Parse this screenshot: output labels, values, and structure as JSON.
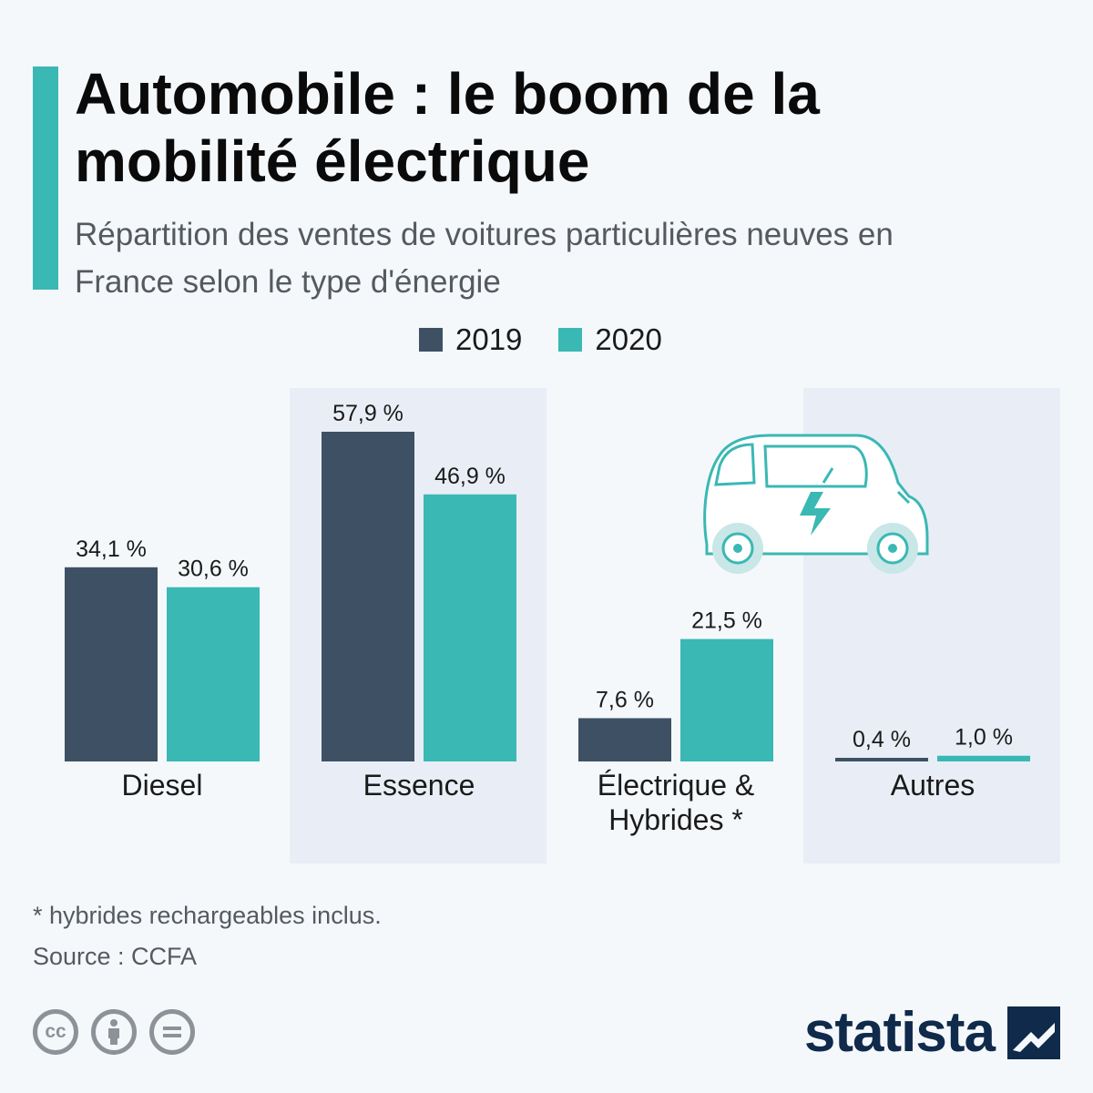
{
  "title": "Automobile : le boom de la mobilité électrique",
  "subtitle": "Répartition des ventes de voitures particulières neuves en France selon le type d'énergie",
  "legend": {
    "series_2019": "2019",
    "series_2020": "2020"
  },
  "colors": {
    "accent": "#3ab8b4",
    "series_2019": "#3e5164",
    "series_2020": "#3ab8b4",
    "band": "#e9eef6"
  },
  "chart_data": {
    "type": "bar",
    "categories": [
      "Diesel",
      "Essence",
      "Électrique & Hybrides *",
      "Autres"
    ],
    "category_lines": [
      [
        "Diesel"
      ],
      [
        "Essence"
      ],
      [
        "Électrique &",
        "Hybrides *"
      ],
      [
        "Autres"
      ]
    ],
    "series": [
      {
        "name": "2019",
        "values": [
          34.1,
          57.9,
          7.6,
          0.4
        ],
        "labels": [
          "34,1 %",
          "57,9 %",
          "7,6 %",
          "0,4 %"
        ]
      },
      {
        "name": "2020",
        "values": [
          30.6,
          46.9,
          21.5,
          1.0
        ],
        "labels": [
          "30,6 %",
          "46,9 %",
          "21,5 %",
          "1,0 %"
        ]
      }
    ],
    "ylim": [
      0,
      57.9
    ],
    "grid": false,
    "legend_position": "top-center"
  },
  "footnote": "* hybrides rechargeables inclus.",
  "source": "Source : CCFA",
  "license_icons": [
    "cc-icon",
    "by-attribution-icon",
    "no-derivatives-icon"
  ],
  "brand": "statista"
}
